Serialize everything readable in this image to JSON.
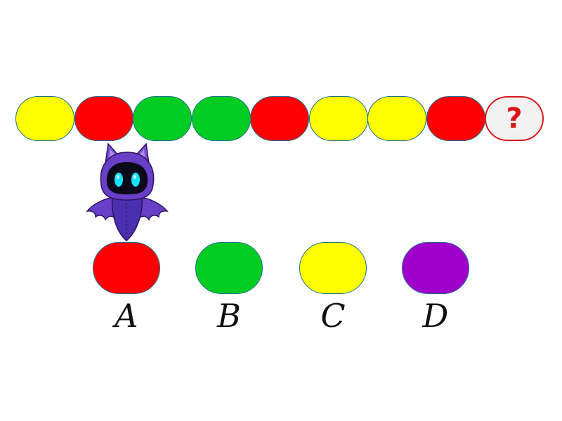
{
  "sequence": {
    "beads": [
      {
        "color": "#ffff00"
      },
      {
        "color": "#ff0000"
      },
      {
        "color": "#00cc22"
      },
      {
        "color": "#00cc22"
      },
      {
        "color": "#ff0000"
      },
      {
        "color": "#ffff00"
      },
      {
        "color": "#ffff00"
      },
      {
        "color": "#ff0000"
      }
    ],
    "unknown": {
      "text": "?",
      "fill": "#f2f2f2",
      "border": "#d81818"
    }
  },
  "mascot": {
    "icon": "purple-bat-mascot-icon"
  },
  "options": [
    {
      "label": "A",
      "color": "#ff0000"
    },
    {
      "label": "B",
      "color": "#00cc22"
    },
    {
      "label": "C",
      "color": "#ffff00"
    },
    {
      "label": "D",
      "color": "#a000cc"
    }
  ]
}
